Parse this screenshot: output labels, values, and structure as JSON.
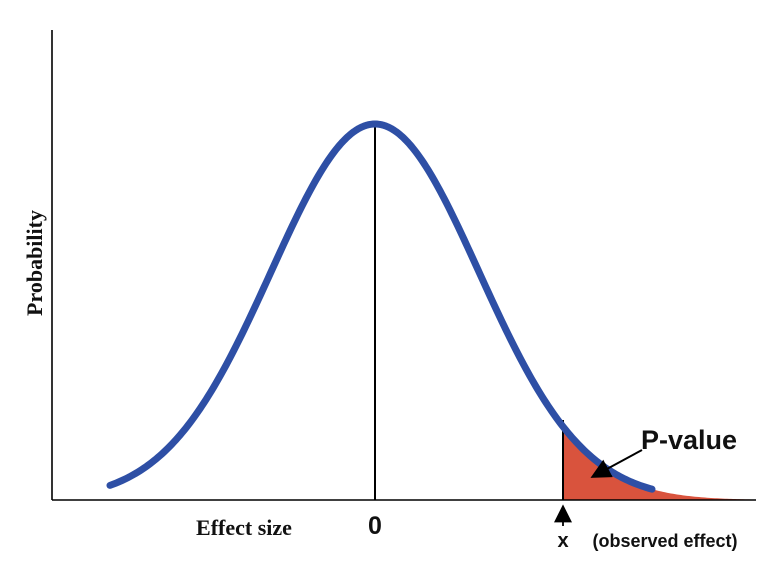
{
  "diagram": {
    "y_axis_label": "Probability",
    "x_axis_label": "Effect size",
    "center_label": "0",
    "observed_label": "x",
    "observed_note": "(observed effect)",
    "region_label": "P-value",
    "colors": {
      "curve": "#2e4fa5",
      "shaded_region": "#d9533d",
      "axis": "#000000",
      "text": "#111111"
    }
  }
}
